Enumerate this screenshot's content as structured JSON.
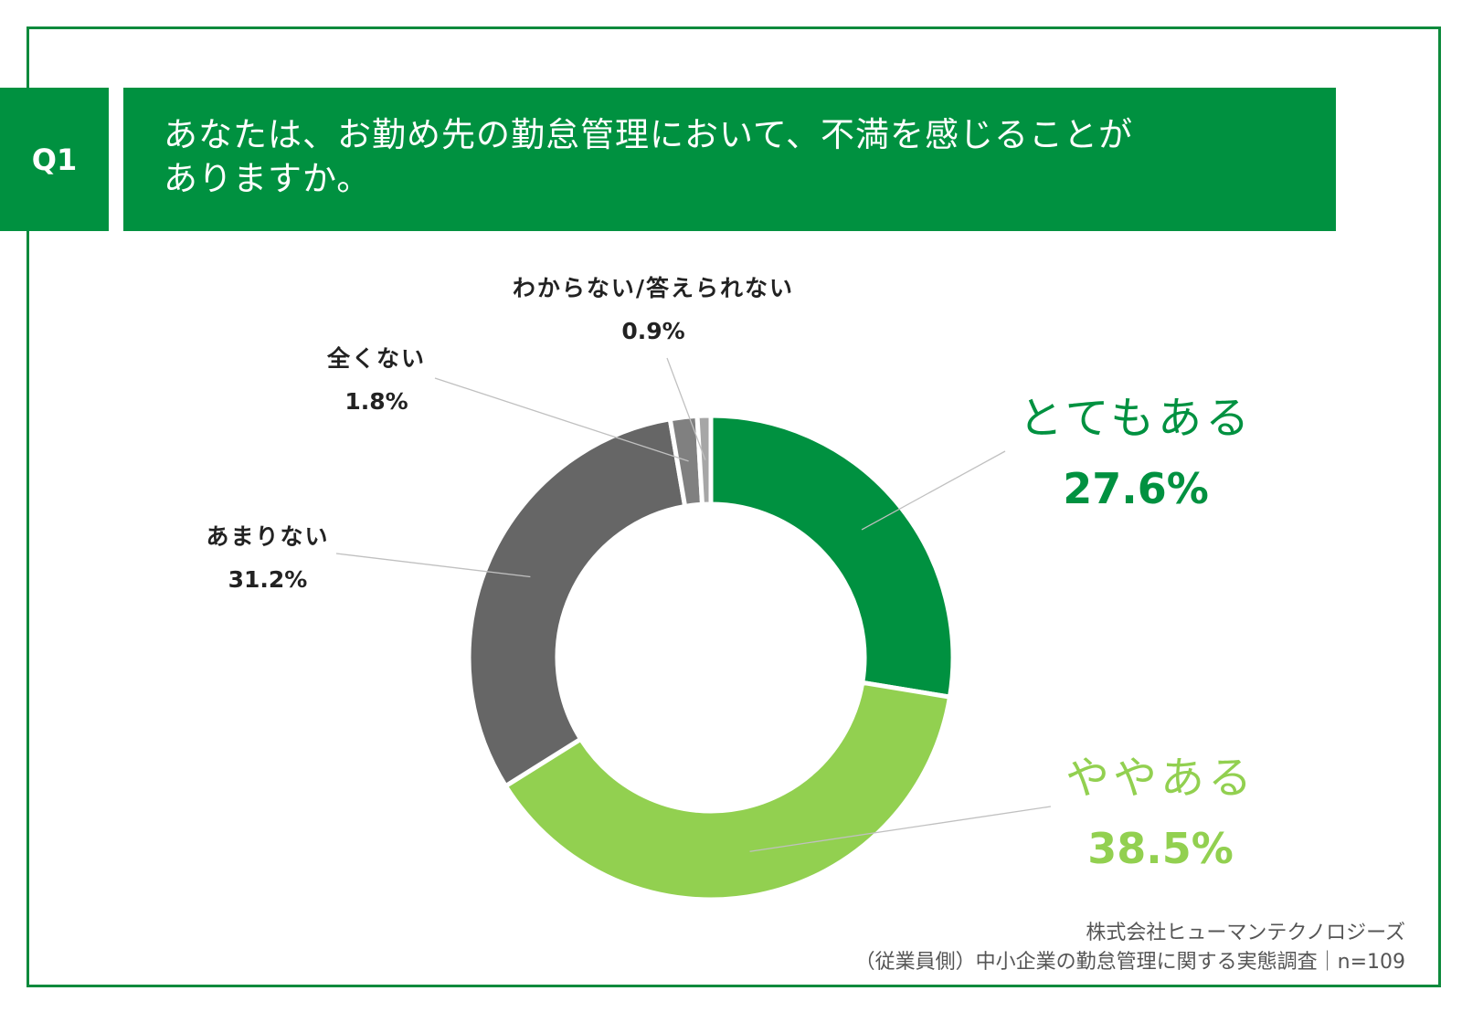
{
  "header": {
    "badge": "Q1",
    "question_line1": "あなたは、お勤め先の勤怠管理において、不満を感じることが",
    "question_line2": "ありますか。"
  },
  "chart_data": {
    "type": "pie",
    "donut": true,
    "slices": [
      {
        "label": "とてもある",
        "value": 27.6,
        "display": "27.6%",
        "color": "#009140"
      },
      {
        "label": "ややある",
        "value": 38.5,
        "display": "38.5%",
        "color": "#92d050"
      },
      {
        "label": "あまりない",
        "value": 31.2,
        "display": "31.2%",
        "color": "#666666"
      },
      {
        "label": "全くない",
        "value": 1.8,
        "display": "1.8%",
        "color": "#808080"
      },
      {
        "label": "わからない/答えられない",
        "value": 0.9,
        "display": "0.9%",
        "color": "#a6a6a6"
      }
    ],
    "legend": "none"
  },
  "source": {
    "line1": "株式会社ヒューマンテクノロジーズ",
    "line2": "（従業員側）中小企業の勤怠管理に関する実態調査｜n=109"
  },
  "colors": {
    "frame": "#0e8a3c",
    "header_bg": "#009140",
    "label_dark_green": "#009140",
    "label_light_green": "#92d050",
    "leader_line": "#c0c0c0"
  }
}
